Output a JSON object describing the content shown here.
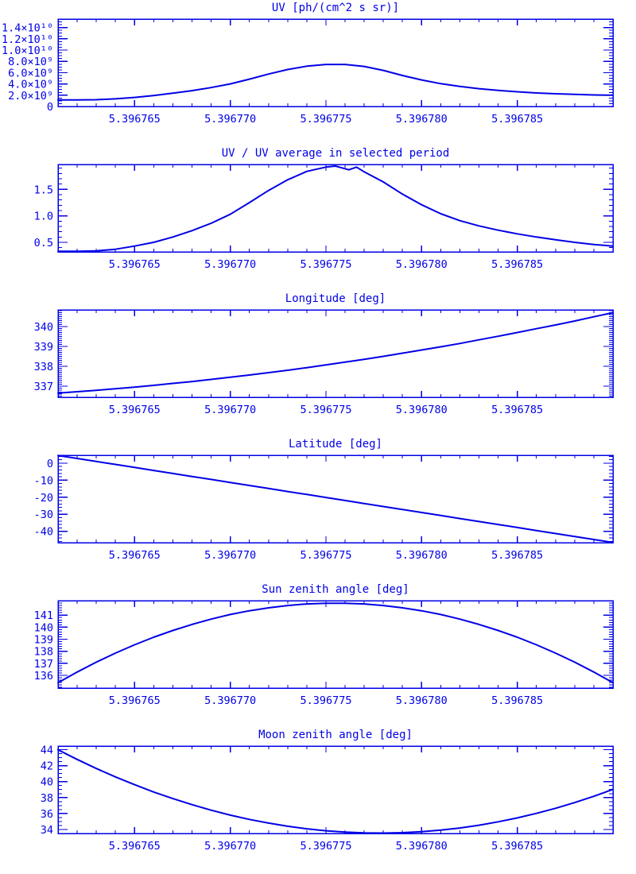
{
  "style": {
    "accent": "#0000E6",
    "background": "#FFFFFF"
  },
  "x_axis": {
    "range": [
      5.396761,
      5.39679
    ],
    "ticks": [
      5.396765,
      5.39677,
      5.396775,
      5.39678,
      5.396785
    ],
    "tick_labels": [
      "5.396765",
      "5.396770",
      "5.396775",
      "5.396780",
      "5.396785"
    ],
    "minor_step": 1e-06,
    "samples": [
      5.396761,
      5.396762,
      5.396763,
      5.396764,
      5.396765,
      5.396766,
      5.396767,
      5.396768,
      5.396769,
      5.39677,
      5.396771,
      5.396772,
      5.396773,
      5.396774,
      5.396775,
      5.396776,
      5.396777,
      5.396778,
      5.396779,
      5.39678,
      5.396781,
      5.396782,
      5.396783,
      5.396784,
      5.396785,
      5.396786,
      5.396787,
      5.396788,
      5.396789,
      5.39679
    ]
  },
  "chart_data": [
    {
      "type": "line",
      "title": "UV [ph/(cm^2 s sr)]",
      "ylim": [
        0,
        15500000000.0
      ],
      "yticks": [
        0,
        2000000000.0,
        4000000000.0,
        6000000000.0,
        8000000000.0,
        10000000000.0,
        12000000000.0,
        14000000000.0
      ],
      "ytick_labels": [
        "0",
        "2.0×10⁹",
        "4.0×10⁹",
        "6.0×10⁹",
        "8.0×10⁹",
        "1.0×10¹⁰",
        "1.2×10¹⁰",
        "1.4×10¹⁰"
      ],
      "y_minor_step": 500000000.0,
      "y": [
        1150000000.0,
        1150000000.0,
        1200000000.0,
        1350000000.0,
        1600000000.0,
        1950000000.0,
        2350000000.0,
        2800000000.0,
        3350000000.0,
        4000000000.0,
        4850000000.0,
        5750000000.0,
        6550000000.0,
        7150000000.0,
        7450000000.0,
        7450000000.0,
        7100000000.0,
        6400000000.0,
        5500000000.0,
        4700000000.0,
        4050000000.0,
        3550000000.0,
        3150000000.0,
        2850000000.0,
        2600000000.0,
        2400000000.0,
        2250000000.0,
        2150000000.0,
        2050000000.0,
        2000000000.0
      ]
    },
    {
      "type": "line",
      "title": "UV / UV average in selected period",
      "ylim": [
        0.32,
        1.97
      ],
      "yticks": [
        0.5,
        1.0,
        1.5
      ],
      "ytick_labels": [
        "0.5",
        "1.0",
        "1.5"
      ],
      "y_minor_step": 0.1,
      "x": [
        5.396761,
        5.396762,
        5.396763,
        5.396764,
        5.396765,
        5.396766,
        5.396767,
        5.396768,
        5.396769,
        5.39677,
        5.396771,
        5.396772,
        5.396773,
        5.396774,
        5.396775,
        5.3967755,
        5.3967762,
        5.3967766,
        5.396777,
        5.396778,
        5.396779,
        5.39678,
        5.396781,
        5.396782,
        5.396783,
        5.396784,
        5.396785,
        5.396786,
        5.396787,
        5.396788,
        5.396789,
        5.39679
      ],
      "y": [
        0.33,
        0.33,
        0.34,
        0.37,
        0.43,
        0.5,
        0.6,
        0.72,
        0.86,
        1.03,
        1.25,
        1.48,
        1.68,
        1.84,
        1.92,
        1.94,
        1.87,
        1.92,
        1.83,
        1.64,
        1.41,
        1.21,
        1.04,
        0.91,
        0.81,
        0.73,
        0.66,
        0.6,
        0.55,
        0.5,
        0.46,
        0.43
      ]
    },
    {
      "type": "line",
      "title": "Longitude [deg]",
      "ylim": [
        336.44,
        340.84
      ],
      "yticks": [
        337,
        338,
        339,
        340
      ],
      "ytick_labels": [
        "337",
        "338",
        "339",
        "340"
      ],
      "y_minor_step": 0.1,
      "y": [
        336.65,
        336.72,
        336.79,
        336.87,
        336.95,
        337.04,
        337.14,
        337.23,
        337.34,
        337.45,
        337.56,
        337.68,
        337.8,
        337.93,
        338.07,
        338.21,
        338.35,
        338.5,
        338.66,
        338.82,
        338.98,
        339.15,
        339.33,
        339.51,
        339.7,
        339.89,
        340.08,
        340.28,
        340.49,
        340.7
      ]
    },
    {
      "type": "line",
      "title": "Latitude [deg]",
      "ylim": [
        -46.7,
        4.65
      ],
      "yticks": [
        0,
        -10,
        -20,
        -30,
        -40
      ],
      "ytick_labels": [
        "0",
        "-10",
        "-20",
        "-30",
        "-40"
      ],
      "y_minor_step": 2,
      "y": [
        4.55,
        2.79,
        1.02,
        -0.74,
        -2.51,
        -4.27,
        -6.03,
        -7.8,
        -9.56,
        -11.33,
        -13.09,
        -14.85,
        -16.62,
        -18.38,
        -20.15,
        -21.91,
        -23.67,
        -25.44,
        -27.2,
        -28.97,
        -30.73,
        -32.49,
        -34.26,
        -36.02,
        -37.79,
        -39.55,
        -41.31,
        -43.08,
        -44.84,
        -46.6
      ]
    },
    {
      "type": "line",
      "title": "Sun zenith angle [deg]",
      "ylim": [
        134.95,
        142.2
      ],
      "yticks": [
        136,
        137,
        138,
        139,
        140,
        141
      ],
      "ytick_labels": [
        "136",
        "137",
        "138",
        "139",
        "140",
        "141"
      ],
      "y_minor_step": 0.2,
      "y": [
        135.4,
        136.28,
        137.1,
        137.85,
        138.54,
        139.17,
        139.73,
        140.23,
        140.67,
        141.05,
        141.36,
        141.61,
        141.8,
        141.93,
        141.99,
        141.99,
        141.93,
        141.8,
        141.61,
        141.36,
        141.05,
        140.67,
        140.23,
        139.73,
        139.17,
        138.54,
        137.85,
        137.1,
        136.28,
        135.4
      ]
    },
    {
      "type": "line",
      "title": "Moon zenith angle [deg]",
      "ylim": [
        33.5,
        44.45
      ],
      "yticks": [
        34,
        36,
        38,
        40,
        42,
        44
      ],
      "ytick_labels": [
        "34",
        "36",
        "38",
        "40",
        "42",
        "44"
      ],
      "y_minor_step": 0.5,
      "y": [
        43.98,
        42.78,
        41.64,
        40.59,
        39.61,
        38.7,
        37.87,
        37.11,
        36.42,
        35.8,
        35.26,
        34.8,
        34.41,
        34.09,
        33.84,
        33.67,
        33.57,
        33.55,
        33.6,
        33.73,
        33.92,
        34.19,
        34.54,
        34.96,
        35.45,
        36.02,
        36.66,
        37.37,
        38.16,
        39.02
      ]
    }
  ]
}
